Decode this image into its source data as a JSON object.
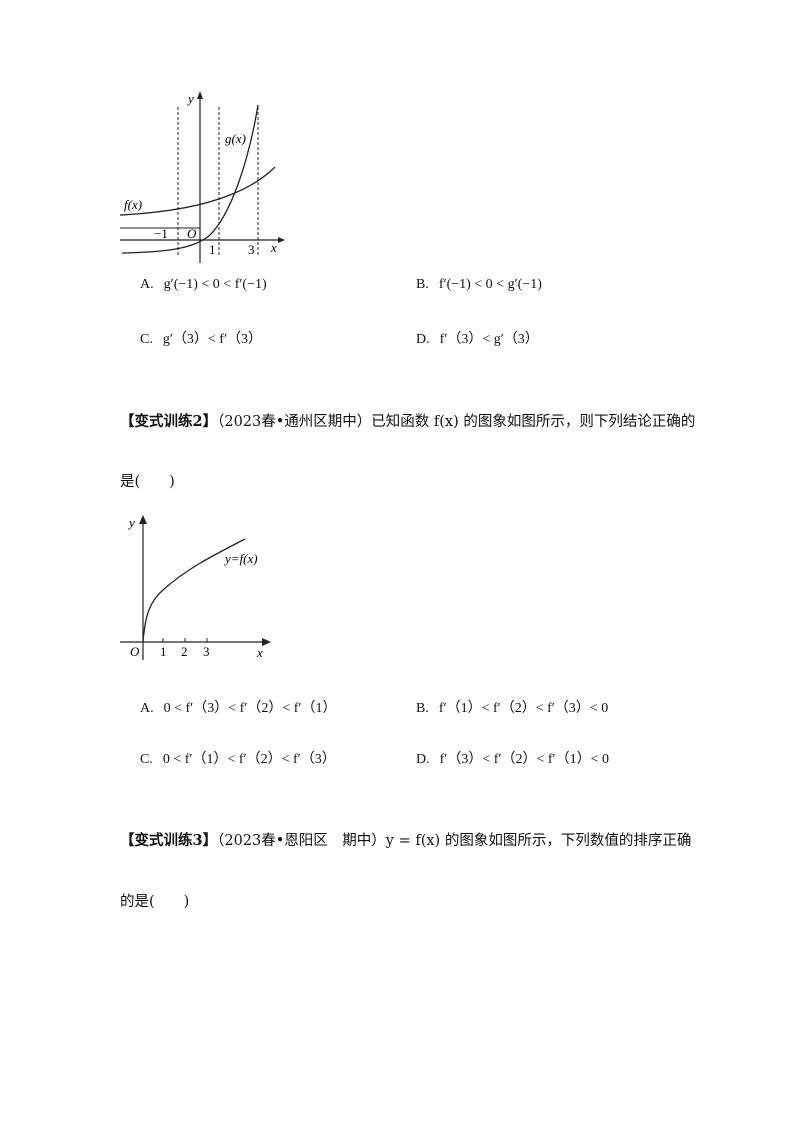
{
  "figure1": {
    "y_label": "y",
    "x_label": "x",
    "origin": "O",
    "g_label": "g(x)",
    "f_label": "f(x)",
    "tick_neg1": "−1",
    "tick_1": "1",
    "tick_3": "3"
  },
  "q1_options": {
    "A": {
      "label": "A.",
      "expr": "g′(−1) < 0 < f′(−1)"
    },
    "B": {
      "label": "B.",
      "expr": "f′(−1) < 0 < g′(−1)"
    },
    "C": {
      "label": "C.",
      "expr": "g′（3）< f′（3）"
    },
    "D": {
      "label": "D.",
      "expr": "f′（3）< g′（3）"
    }
  },
  "q2": {
    "tag": "【变式训练2】",
    "text": "（2023春•通州区期中）已知函数 f(x) 的图象如图所示，则下列结论正确的",
    "text2": "是(　　)"
  },
  "figure2": {
    "y_label": "y",
    "x_label": "x",
    "origin": "O",
    "curve_label": "y=f(x)",
    "tick_1": "1",
    "tick_2": "2",
    "tick_3": "3"
  },
  "q2_options": {
    "A": {
      "label": "A.",
      "expr": "0 < f′（3）< f′（2）< f′（1）"
    },
    "B": {
      "label": "B.",
      "expr": "f′（1）< f′（2）< f′（3）< 0"
    },
    "C": {
      "label": "C.",
      "expr": "0 < f′（1）< f′（2）< f′（3）"
    },
    "D": {
      "label": "D.",
      "expr": "f′（3）< f′（2）< f′（1）< 0"
    }
  },
  "q3": {
    "tag": "【变式训练3】",
    "text": "（2023春•恩阳区　期中）y = f(x) 的图象如图所示，下列数值的排序正确",
    "text2": "的是(　　)"
  }
}
